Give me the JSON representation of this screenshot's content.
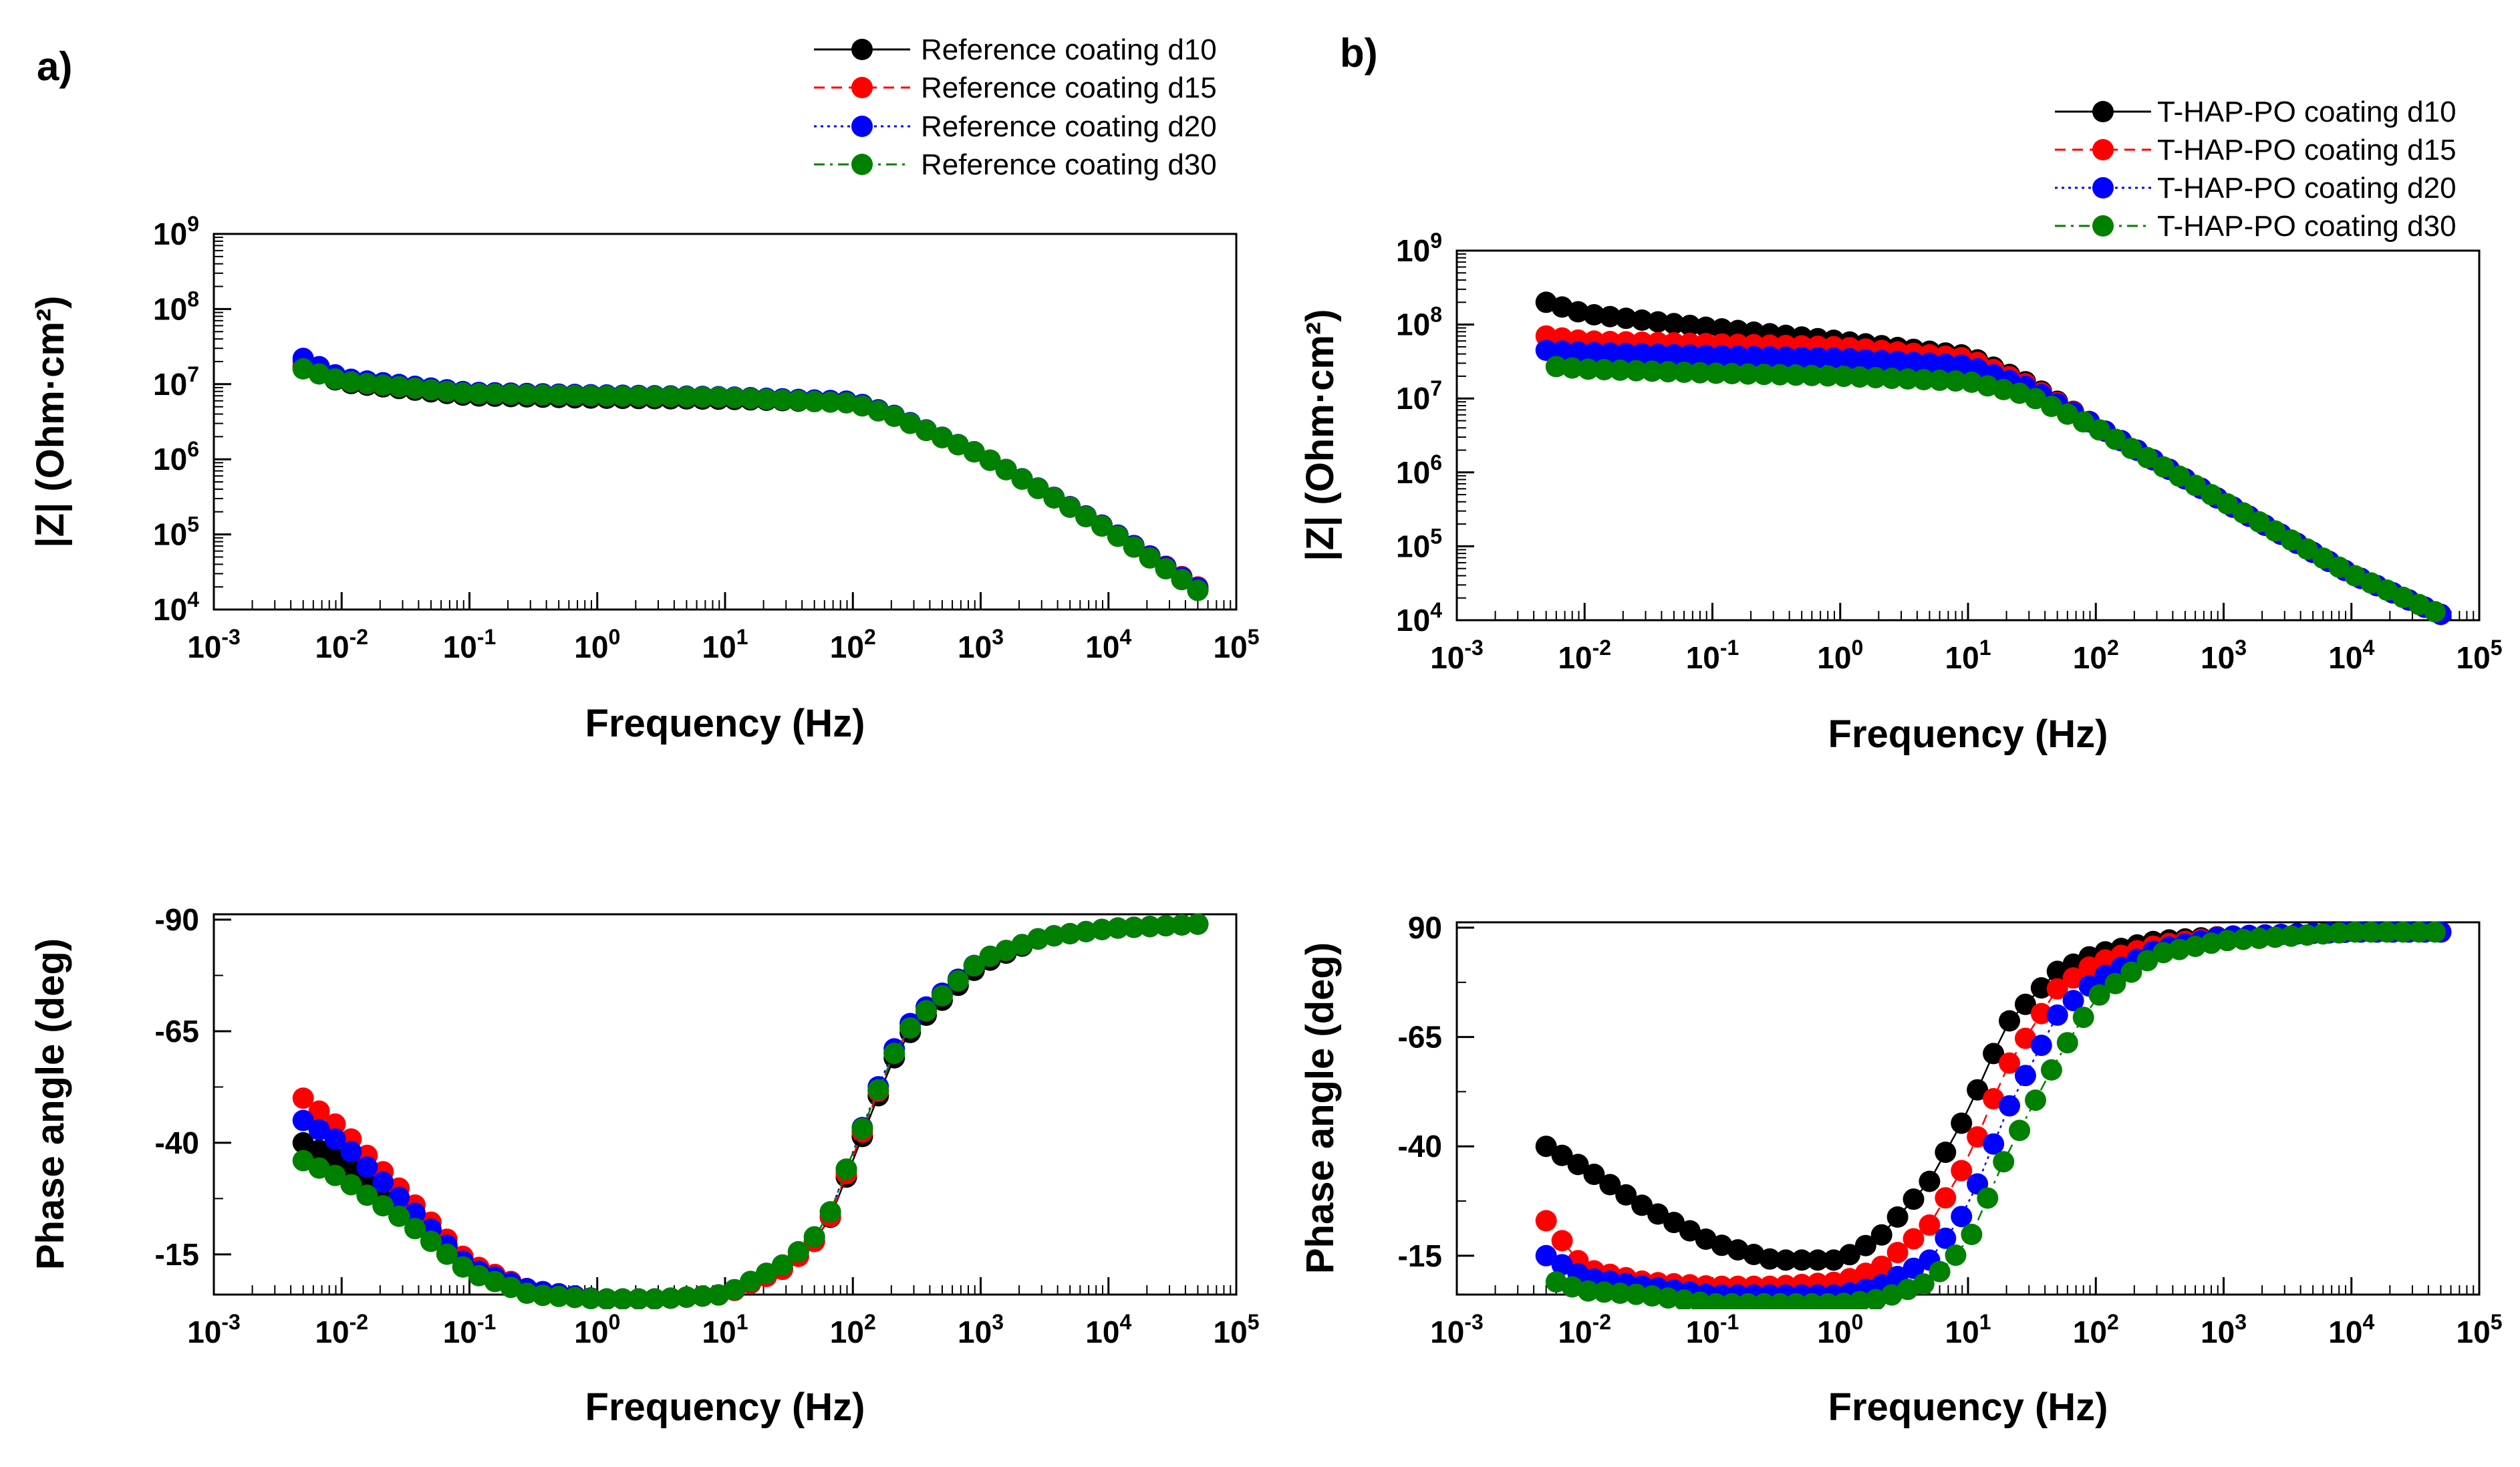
{
  "panels": [
    {
      "label": "a)",
      "legend": [
        "Reference coating d10",
        "Reference coating d15",
        "Reference coating d20",
        "Reference coating d30"
      ]
    },
    {
      "label": "b)",
      "legend": [
        "T-HAP-PO coating d10",
        "T-HAP-PO coating d15",
        "T-HAP-PO coating d20",
        "T-HAP-PO coating d30"
      ]
    }
  ],
  "colors": {
    "d10": "#000000",
    "d15": "#ff0000",
    "d20": "#0000ff",
    "d30": "#008000"
  },
  "chart_data": [
    {
      "type": "scatter",
      "panel": "a)",
      "xlabel": "Frequency (Hz)",
      "ylabel": "|Z| (Ohm·cm²)",
      "xscale": "log",
      "yscale": "log",
      "xlim": [
        0.001,
        100000
      ],
      "ylim": [
        10000,
        1000000000
      ],
      "xticks": [
        "10-3",
        "10-2",
        "10-1",
        "100",
        "101",
        "102",
        "103",
        "104",
        "105"
      ],
      "yticks": [
        "104",
        "105",
        "106",
        "107",
        "108",
        "109"
      ],
      "series": [
        {
          "name": "Reference coating d10",
          "color": "#000000",
          "x": [
            0.005,
            0.01,
            0.1,
            1,
            10,
            100,
            200,
            1000,
            10000,
            50000
          ],
          "y": [
            17000000,
            10500000,
            7000000,
            6500000,
            6300000,
            5700000,
            3900000,
            1150000,
            115000,
            18000
          ]
        },
        {
          "name": "Reference coating d15",
          "color": "#ff0000",
          "x": [
            0.005,
            0.01,
            0.1,
            1,
            10,
            100,
            200,
            1000,
            10000,
            50000
          ],
          "y": [
            20000000,
            11000000,
            7500000,
            7000000,
            6700000,
            5800000,
            3900000,
            1150000,
            118000,
            20000
          ]
        },
        {
          "name": "Reference coating d20",
          "color": "#0000ff",
          "x": [
            0.005,
            0.01,
            0.1,
            1,
            10,
            100,
            200,
            1000,
            10000,
            50000
          ],
          "y": [
            22000000,
            12000000,
            7800000,
            7200000,
            6800000,
            5900000,
            4000000,
            1150000,
            118000,
            19500
          ]
        },
        {
          "name": "Reference coating d30",
          "color": "#008000",
          "x": [
            0.005,
            0.01,
            0.1,
            1,
            10,
            100,
            200,
            1000,
            10000,
            50000
          ],
          "y": [
            16000000,
            11000000,
            7500000,
            7000000,
            6700000,
            5600000,
            3900000,
            1150000,
            115000,
            18000
          ]
        }
      ]
    },
    {
      "type": "scatter",
      "panel": "a)",
      "xlabel": "Frequency (Hz)",
      "ylabel": "Phase angle (deg)",
      "xscale": "log",
      "xlim": [
        0.001,
        100000
      ],
      "ylim": [
        0,
        -90
      ],
      "xticks": [
        "10-3",
        "10-2",
        "10-1",
        "100",
        "101",
        "102",
        "103",
        "104",
        "105"
      ],
      "yticks": [
        "-90",
        "-65",
        "-40",
        "-15"
      ],
      "series": [
        {
          "name": "Reference coating d10",
          "color": "#000000",
          "x": [
            0.005,
            0.01,
            0.03,
            0.1,
            0.3,
            1,
            3,
            10,
            30,
            60,
            100,
            200,
            300,
            1000,
            3000,
            10000,
            50000
          ],
          "y": [
            -40,
            -36,
            -26,
            -12,
            -7,
            -5,
            -5,
            -6,
            -12,
            -20,
            -36,
            -58,
            -66,
            -80,
            -86,
            -88,
            -89
          ]
        },
        {
          "name": "Reference coating d15",
          "color": "#ff0000",
          "x": [
            0.005,
            0.01,
            0.03,
            0.1,
            0.3,
            1,
            3,
            10,
            30,
            60,
            100,
            200,
            300,
            1000,
            3000,
            10000,
            50000
          ],
          "y": [
            -50,
            -43,
            -29,
            -13,
            -7,
            -5,
            -5,
            -6,
            -12,
            -20,
            -37,
            -59,
            -67,
            -81,
            -86,
            -88,
            -89
          ]
        },
        {
          "name": "Reference coating d20",
          "color": "#0000ff",
          "x": [
            0.005,
            0.01,
            0.03,
            0.1,
            0.3,
            1,
            3,
            10,
            30,
            60,
            100,
            200,
            300,
            1000,
            3000,
            10000,
            50000
          ],
          "y": [
            -45,
            -40,
            -27,
            -12,
            -7,
            -5,
            -5,
            -6,
            -13,
            -21,
            -38,
            -60,
            -68,
            -81,
            -86,
            -88,
            -89
          ]
        },
        {
          "name": "Reference coating d30",
          "color": "#008000",
          "x": [
            0.005,
            0.01,
            0.03,
            0.1,
            0.3,
            1,
            3,
            10,
            30,
            60,
            100,
            200,
            300,
            1000,
            3000,
            10000,
            50000
          ],
          "y": [
            -36,
            -32,
            -23,
            -11,
            -6,
            -5,
            -5,
            -6,
            -13,
            -21,
            -38,
            -59,
            -67,
            -81,
            -86,
            -88,
            -89
          ]
        }
      ]
    },
    {
      "type": "scatter",
      "panel": "b)",
      "xlabel": "Frequency (Hz)",
      "ylabel": "|Z| (Ohm·cm²)",
      "xscale": "log",
      "yscale": "log",
      "xlim": [
        0.001,
        100000
      ],
      "ylim": [
        10000,
        1000000000
      ],
      "xticks": [
        "10-3",
        "10-2",
        "10-1",
        "100",
        "101",
        "102",
        "103",
        "104",
        "105"
      ],
      "yticks": [
        "104",
        "105",
        "106",
        "107",
        "108",
        "109"
      ],
      "series": [
        {
          "name": "T-HAP-PO coating d10",
          "color": "#000000",
          "x": [
            0.005,
            0.01,
            0.1,
            1,
            10,
            30,
            100,
            1000,
            10000,
            50000
          ],
          "y": [
            200000000,
            140000000,
            90000000,
            60000000,
            38000000,
            16000000,
            4300000,
            400000,
            42000,
            12000
          ]
        },
        {
          "name": "T-HAP-PO coating d15",
          "color": "#ff0000",
          "x": [
            0.005,
            0.01,
            0.1,
            1,
            10,
            30,
            100,
            1000,
            10000,
            50000
          ],
          "y": [
            70000000,
            60000000,
            55000000,
            50000000,
            35000000,
            15000000,
            4300000,
            400000,
            42000,
            12000
          ]
        },
        {
          "name": "T-HAP-PO coating d20",
          "color": "#0000ff",
          "x": [
            0.005,
            0.01,
            0.1,
            1,
            10,
            30,
            100,
            1000,
            10000,
            50000
          ],
          "y": [
            45000000,
            42000000,
            38000000,
            35000000,
            28000000,
            14000000,
            4300000,
            400000,
            42000,
            12000
          ]
        },
        {
          "name": "T-HAP-PO coating d30",
          "color": "#008000",
          "x": [
            0.006,
            0.01,
            0.1,
            1,
            10,
            30,
            100,
            1000,
            10000,
            50000
          ],
          "y": [
            27000000,
            25000000,
            22000000,
            20000000,
            17000000,
            11000000,
            4000000,
            400000,
            42000,
            12000
          ]
        }
      ]
    },
    {
      "type": "scatter",
      "panel": "b)",
      "xlabel": "Frequency (Hz)",
      "ylabel": "Phase angle (deg)",
      "xscale": "log",
      "xlim": [
        0.001,
        100000
      ],
      "ylim": [
        0,
        -90
      ],
      "xticks": [
        "10-3",
        "10-2",
        "10-1",
        "100",
        "101",
        "102",
        "103",
        "104",
        "105"
      ],
      "yticks": [
        "90",
        "-65",
        "-40",
        "-15"
      ],
      "series": [
        {
          "name": "T-HAP-PO coating d10",
          "color": "#000000",
          "x": [
            0.005,
            0.01,
            0.03,
            0.1,
            0.3,
            1,
            2,
            5,
            10,
            20,
            50,
            100,
            300,
            1000,
            10000,
            50000
          ],
          "y": [
            -40,
            -35,
            -26,
            -18,
            -14,
            -14,
            -19,
            -32,
            -48,
            -68,
            -80,
            -84,
            -87,
            -88,
            -89,
            -89
          ]
        },
        {
          "name": "T-HAP-PO coating d15",
          "color": "#ff0000",
          "x": [
            0.005,
            0.01,
            0.03,
            0.1,
            0.3,
            1,
            2,
            5,
            10,
            20,
            50,
            100,
            300,
            1000,
            10000,
            50000
          ],
          "y": [
            -23,
            -12,
            -9,
            -8,
            -8,
            -9,
            -12,
            -22,
            -37,
            -58,
            -76,
            -82,
            -86,
            -88,
            -89,
            -89
          ]
        },
        {
          "name": "T-HAP-PO coating d20",
          "color": "#0000ff",
          "x": [
            0.005,
            0.01,
            0.03,
            0.1,
            0.3,
            1,
            2,
            5,
            10,
            20,
            50,
            100,
            300,
            1000,
            10000,
            50000
          ],
          "y": [
            -15,
            -10,
            -8,
            -6,
            -6,
            -6,
            -8,
            -14,
            -26,
            -48,
            -70,
            -78,
            -85,
            -88,
            -89,
            -89
          ]
        },
        {
          "name": "T-HAP-PO coating d30",
          "color": "#008000",
          "x": [
            0.006,
            0.01,
            0.03,
            0.1,
            0.3,
            1,
            2,
            5,
            10,
            20,
            50,
            100,
            300,
            1000,
            10000,
            50000
          ],
          "y": [
            -9,
            -7,
            -6,
            -4,
            -4,
            -4,
            -5,
            -9,
            -18,
            -38,
            -60,
            -74,
            -84,
            -87,
            -89,
            -89
          ]
        }
      ]
    }
  ]
}
